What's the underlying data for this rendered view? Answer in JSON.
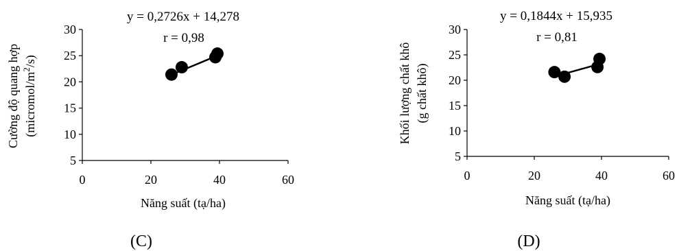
{
  "chart_data": [
    {
      "type": "scatter",
      "panel_label": "(C)",
      "equation": "y = 0,2726x + 14,278",
      "r_label": "r = 0,98",
      "xlabel": "Năng suất (tạ/ha)",
      "ylabel_line1": "Cường độ quang hợp",
      "ylabel_line2_pre": "(micromol/m",
      "ylabel_line2_sup": "2",
      "ylabel_line2_post": "/s)",
      "xlim": [
        0,
        60
      ],
      "ylim": [
        5,
        30
      ],
      "xticks": [
        "0",
        "20",
        "40",
        "60"
      ],
      "yticks": [
        "5",
        "10",
        "15",
        "20",
        "25",
        "30"
      ],
      "points": [
        {
          "x": 26,
          "y": 21.4
        },
        {
          "x": 29,
          "y": 22.8
        },
        {
          "x": 38.8,
          "y": 24.7
        },
        {
          "x": 39.4,
          "y": 25.4
        }
      ],
      "trendline": {
        "slope": 0.2726,
        "intercept": 14.278,
        "x_range": [
          26,
          39.4
        ]
      },
      "grid": false
    },
    {
      "type": "scatter",
      "panel_label": "(D)",
      "equation": "y = 0,1844x + 15,935",
      "r_label": "r = 0,81",
      "xlabel": "Năng suất (tạ/ha)",
      "ylabel_line1": "Khối lượng chất khô",
      "ylabel_line2_pre": "(g chất khô)",
      "ylabel_line2_sup": "",
      "ylabel_line2_post": "",
      "xlim": [
        0,
        60
      ],
      "ylim": [
        5,
        30
      ],
      "xticks": [
        "0",
        "20",
        "40",
        "60"
      ],
      "yticks": [
        "5",
        "10",
        "15",
        "20",
        "25",
        "30"
      ],
      "points": [
        {
          "x": 26,
          "y": 21.6
        },
        {
          "x": 29,
          "y": 20.7
        },
        {
          "x": 38.8,
          "y": 22.6
        },
        {
          "x": 39.4,
          "y": 24.2
        }
      ],
      "trendline": {
        "slope": 0.1844,
        "intercept": 15.935,
        "x_range": [
          26,
          39.4
        ]
      },
      "grid": false
    }
  ]
}
